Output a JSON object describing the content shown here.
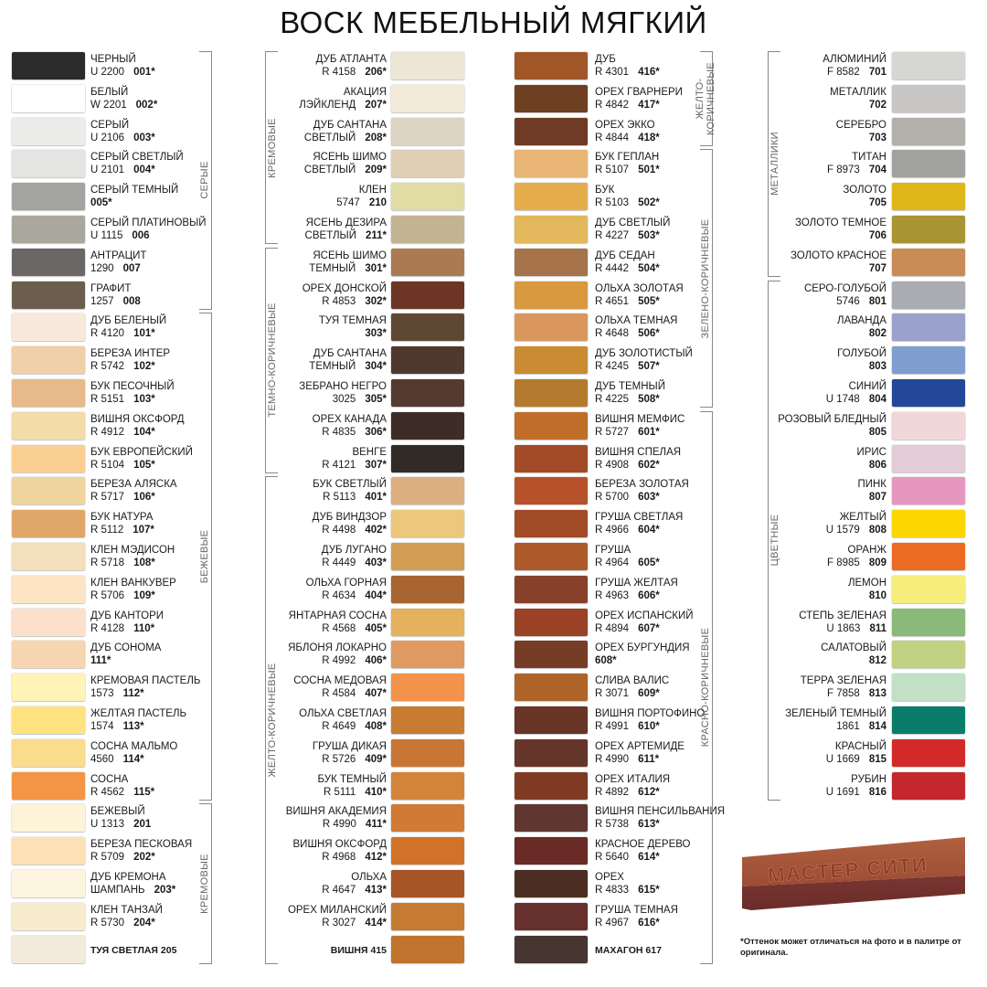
{
  "title": "ВОСК МЕБЕЛЬНЫЙ МЯГКИЙ",
  "columns": [
    {
      "align": "right-text",
      "groups": [
        {
          "label": "СЕРЫЕ",
          "from": 0,
          "to": 7
        },
        {
          "label": "БЕЖЕВЫЕ",
          "from": 8,
          "to": 22
        },
        {
          "label": "КРЕМОВЫЕ",
          "from": 23,
          "to": 27
        }
      ],
      "items": [
        {
          "l1": "ЧЕРНЫЙ",
          "l2": "U 2200",
          "code": "001*",
          "color": "#2b2b2b"
        },
        {
          "l1": "БЕЛЫЙ",
          "l2": "W 2201",
          "code": "002*",
          "color": "#ffffff"
        },
        {
          "l1": "СЕРЫЙ",
          "l2": "U 2106",
          "code": "003*",
          "color": "#ebebea"
        },
        {
          "l1": "СЕРЫЙ СВЕТЛЫЙ",
          "l2": "U 2101",
          "code": "004*",
          "color": "#e4e4e2"
        },
        {
          "l1": "СЕРЫЙ ТЕМНЫЙ",
          "l2": "",
          "code": "005*",
          "color": "#a3a4a0"
        },
        {
          "l1": "СЕРЫЙ ПЛАТИНОВЫЙ",
          "l2": "U 1115",
          "code": "006",
          "color": "#aaa89d"
        },
        {
          "l1": "АНТРАЦИТ",
          "l2": "1290",
          "code": "007",
          "color": "#6b6764"
        },
        {
          "l1": "ГРАФИТ",
          "l2": "1257",
          "code": "008",
          "color": "#6b5e4c"
        },
        {
          "l1": "ДУБ БЕЛЕНЫЙ",
          "l2": "R 4120",
          "code": "101*",
          "color": "#f8e9dc"
        },
        {
          "l1": "БЕРЕЗА ИНТЕР",
          "l2": "R 5742",
          "code": "102*",
          "color": "#f0d0a8"
        },
        {
          "l1": "БУК ПЕСОЧНЫЙ",
          "l2": "R 5151",
          "code": "103*",
          "color": "#e8b98a"
        },
        {
          "l1": "ВИШНЯ ОКСФОРД",
          "l2": "R 4912",
          "code": "104*",
          "color": "#f3dca8"
        },
        {
          "l1": "БУК ЕВРОПЕЙСКИЙ",
          "l2": "R 5104",
          "code": "105*",
          "color": "#fbcf92"
        },
        {
          "l1": "БЕРЕЗА АЛЯСКА",
          "l2": "R 5717",
          "code": "106*",
          "color": "#efd49e"
        },
        {
          "l1": "БУК НАТУРА",
          "l2": "R 5112",
          "code": "107*",
          "color": "#e0a66a"
        },
        {
          "l1": "КЛЕН МЭДИСОН",
          "l2": "R 5718",
          "code": "108*",
          "color": "#f4dfbd"
        },
        {
          "l1": "КЛЕН ВАНКУВЕР",
          "l2": "R 5706",
          "code": "109*",
          "color": "#fde4c4"
        },
        {
          "l1": "ДУБ КАНТОРИ",
          "l2": "R 4128",
          "code": "110*",
          "color": "#fde0cc"
        },
        {
          "l1": "ДУБ СОНОМА",
          "l2": "",
          "code": "111*",
          "color": "#f6d5b0"
        },
        {
          "l1": "КРЕМОВАЯ ПАСТЕЛЬ",
          "l2": "1573",
          "code": "112*",
          "color": "#fff3b8"
        },
        {
          "l1": "ЖЕЛТАЯ ПАСТЕЛЬ",
          "l2": "1574",
          "code": "113*",
          "color": "#fee380"
        },
        {
          "l1": "СОСНА МАЛЬМО",
          "l2": "4560",
          "code": "114*",
          "color": "#fbdc8c"
        },
        {
          "l1": "СОСНА",
          "l2": "R 4562",
          "code": "115*",
          "color": "#f39447"
        },
        {
          "l1": "БЕЖЕВЫЙ",
          "l2": "U 1313",
          "code": "201",
          "color": "#fdf3d8"
        },
        {
          "l1": "БЕРЕЗА ПЕСКОВАЯ",
          "l2": "R 5709",
          "code": "202*",
          "color": "#fde0b6"
        },
        {
          "l1": "ДУБ КРЕМОНА",
          "l2": "ШАМПАНЬ",
          "code": "203*",
          "color": "#fdf5e0"
        },
        {
          "l1": "КЛЕН ТАНЗАЙ",
          "l2": "R 5730",
          "code": "204*",
          "color": "#f8ecce"
        },
        {
          "single": "ТУЯ СВЕТЛАЯ 205",
          "color": "#f3eadb"
        }
      ]
    },
    {
      "align": "left-text",
      "groups": [
        {
          "label": "КРЕМОВЫЕ",
          "from": 0,
          "to": 5
        },
        {
          "label": "ТЕМНО-КОРИЧНЕВЫЕ",
          "from": 6,
          "to": 12
        },
        {
          "label": "ЖЕЛТО-КОРИЧНЕВЫЕ",
          "from": 13,
          "to": 27
        }
      ],
      "items": [
        {
          "l1": "ДУБ АТЛАНТА",
          "l2": "R 4158",
          "code": "206*",
          "color": "#ede5d5"
        },
        {
          "l1": "АКАЦИЯ",
          "l2": "ЛЭЙКЛЕНД",
          "code": "207*",
          "color": "#f4ead9"
        },
        {
          "l1": "ДУБ САНТАНА",
          "l2": "СВЕТЛЫЙ",
          "code": "208*",
          "color": "#ded4c4"
        },
        {
          "l1": "ЯСЕНЬ ШИМО",
          "l2": "СВЕТЛЫЙ",
          "code": "209*",
          "color": "#dfcfb5"
        },
        {
          "l1": "КЛЕН",
          "l2": "5747",
          "code": "210",
          "color": "#e1dca3"
        },
        {
          "l1": "ЯСЕНЬ ДЕЗИРА",
          "l2": "СВЕТЛЫЙ",
          "code": "211*",
          "color": "#c2b393"
        },
        {
          "l1": "ЯСЕНЬ ШИМО",
          "l2": "ТЕМНЫЙ",
          "code": "301*",
          "color": "#ac7a52"
        },
        {
          "l1": "ОРЕХ ДОНСКОЙ",
          "l2": "R 4853",
          "code": "302*",
          "color": "#6d3524"
        },
        {
          "l1": "ТУЯ ТЕМНАЯ",
          "l2": "",
          "code": "303*",
          "color": "#5f4833"
        },
        {
          "l1": "ДУБ САНТАНА",
          "l2": "ТЕМНЫЙ",
          "code": "304*",
          "color": "#50382e"
        },
        {
          "l1": "ЗЕБРАНО НЕГРО",
          "l2": "3025",
          "code": "305*",
          "color": "#553a30"
        },
        {
          "l1": "ОРЕХ КАНАДА",
          "l2": "R 4835",
          "code": "306*",
          "color": "#3e2d26"
        },
        {
          "l1": "ВЕНГЕ",
          "l2": "R 4121",
          "code": "307*",
          "color": "#322a26"
        },
        {
          "l1": "БУК СВЕТЛЫЙ",
          "l2": "R 5113",
          "code": "401*",
          "color": "#dcae80"
        },
        {
          "l1": "ДУБ ВИНДЗОР",
          "l2": "R 4498",
          "code": "402*",
          "color": "#ecc77c"
        },
        {
          "l1": "ДУБ ЛУГАНО",
          "l2": "R 4449",
          "code": "403*",
          "color": "#d49d54"
        },
        {
          "l1": "ОЛЬХА ГОРНАЯ",
          "l2": "R 4634",
          "code": "404*",
          "color": "#a8652f"
        },
        {
          "l1": "ЯНТАРНАЯ СОСНА",
          "l2": "R 4568",
          "code": "405*",
          "color": "#e5b15c"
        },
        {
          "l1": "ЯБЛОНЯ ЛОКАРНО",
          "l2": "R 4992",
          "code": "406*",
          "color": "#df9a62"
        },
        {
          "l1": "СОСНА МЕДОВАЯ",
          "l2": "R 4584",
          "code": "407*",
          "color": "#f3924a"
        },
        {
          "l1": "ОЛЬХА СВЕТЛАЯ",
          "l2": "R 4649",
          "code": "408*",
          "color": "#c87c32"
        },
        {
          "l1": "ГРУША ДИКАЯ",
          "l2": "R 5726",
          "code": "409*",
          "color": "#c97634"
        },
        {
          "l1": "БУК ТЕМНЫЙ",
          "l2": "R 5111",
          "code": "410*",
          "color": "#d3843a"
        },
        {
          "l1": "ВИШНЯ АКАДЕМИЯ",
          "l2": "R 4990",
          "code": "411*",
          "color": "#d07a35"
        },
        {
          "l1": "ВИШНЯ ОКСФОРД",
          "l2": "R 4968",
          "code": "412*",
          "color": "#d27228"
        },
        {
          "l1": "ОЛЬХА",
          "l2": "R 4647",
          "code": "413*",
          "color": "#a65526"
        },
        {
          "l1": "ОРЕХ МИЛАНСКИЙ",
          "l2": "R 3027",
          "code": "414*",
          "color": "#c57b32"
        },
        {
          "single": "ВИШНЯ 415",
          "color": "#c0742d"
        }
      ]
    },
    {
      "align": "right-text",
      "groups": [
        {
          "label": "ЖЕЛТО-\nКОРИЧНЕВЫЕ",
          "from": 0,
          "to": 2
        },
        {
          "label": "ЗЕЛЕНО-КОРИЧНЕВЫЕ",
          "from": 3,
          "to": 10
        },
        {
          "label": "КРАСНО-КОРИЧНЕВЫЕ",
          "from": 11,
          "to": 27
        }
      ],
      "items": [
        {
          "l1": "ДУБ",
          "l2": "R 4301",
          "code": "416*",
          "color": "#a15628"
        },
        {
          "l1": "ОРЕХ ГВАРНЕРИ",
          "l2": "R 4842",
          "code": "417*",
          "color": "#6f3f21"
        },
        {
          "l1": "ОРЕХ ЭККО",
          "l2": "R 4844",
          "code": "418*",
          "color": "#6f3b26"
        },
        {
          "l1": "БУК ГЕПЛАН",
          "l2": "R 5107",
          "code": "501*",
          "color": "#e8b574"
        },
        {
          "l1": "БУК",
          "l2": "R 5103",
          "code": "502*",
          "color": "#e5ad4c"
        },
        {
          "l1": "ДУБ СВЕТЛЫЙ",
          "l2": "R 4227",
          "code": "503*",
          "color": "#e3b75b"
        },
        {
          "l1": "ДУБ СЕДАН",
          "l2": "R 4442",
          "code": "504*",
          "color": "#a6734a"
        },
        {
          "l1": "ОЛЬХА ЗОЛОТАЯ",
          "l2": "R 4651",
          "code": "505*",
          "color": "#d9993e"
        },
        {
          "l1": "ОЛЬХА ТЕМНАЯ",
          "l2": "R 4648",
          "code": "506*",
          "color": "#d9975e"
        },
        {
          "l1": "ДУБ ЗОЛОТИСТЫЙ",
          "l2": "R 4245",
          "code": "507*",
          "color": "#c98c32"
        },
        {
          "l1": "ДУБ ТЕМНЫЙ",
          "l2": "R 4225",
          "code": "508*",
          "color": "#b47a2d"
        },
        {
          "l1": "ВИШНЯ МЕМФИС",
          "l2": "R 5727",
          "code": "601*",
          "color": "#c06e2a"
        },
        {
          "l1": "ВИШНЯ СПЕЛАЯ",
          "l2": "R 4908",
          "code": "602*",
          "color": "#a34b27"
        },
        {
          "l1": "БЕРЕЗА ЗОЛОТАЯ",
          "l2": "R 5700",
          "code": "603*",
          "color": "#b8512a"
        },
        {
          "l1": "ГРУША СВЕТЛАЯ",
          "l2": "R 4966",
          "code": "604*",
          "color": "#a24b27"
        },
        {
          "l1": "ГРУША",
          "l2": "R 4964",
          "code": "605*",
          "color": "#ad5a2b"
        },
        {
          "l1": "ГРУША ЖЕЛТАЯ",
          "l2": "R 4963",
          "code": "606*",
          "color": "#87412a"
        },
        {
          "l1": "ОРЕХ ИСПАНСКИЙ",
          "l2": "R 4894",
          "code": "607*",
          "color": "#9a4126"
        },
        {
          "l1": "ОРЕХ БУРГУНДИЯ",
          "l2": "",
          "code": "608*",
          "color": "#773c26"
        },
        {
          "l1": "СЛИВА ВАЛИС",
          "l2": "R 3071",
          "code": "609*",
          "color": "#ae6428"
        },
        {
          "l1": "ВИШНЯ ПОРТОФИНО",
          "l2": "R 4991",
          "code": "610*",
          "color": "#683526"
        },
        {
          "l1": "ОРЕХ АРТЕМИДЕ",
          "l2": "R 4990",
          "code": "611*",
          "color": "#66362b"
        },
        {
          "l1": "ОРЕХ ИТАЛИЯ",
          "l2": "R 4892",
          "code": "612*",
          "color": "#7f3a24"
        },
        {
          "l1": "ВИШНЯ ПЕНСИЛЬВАНИЯ",
          "l2": "R 5738",
          "code": "613*",
          "color": "#5f3630"
        },
        {
          "l1": "КРАСНОЕ ДЕРЕВО",
          "l2": "R 5640",
          "code": "614*",
          "color": "#6a2b26"
        },
        {
          "l1": "ОРЕХ",
          "l2": "R 4833",
          "code": "615*",
          "color": "#4c2e22"
        },
        {
          "l1": "ГРУША ТЕМНАЯ",
          "l2": "R 4967",
          "code": "616*",
          "color": "#66302c"
        },
        {
          "single": "МАХАГОН 617",
          "color": "#463530"
        }
      ]
    },
    {
      "align": "left-text",
      "groups": [
        {
          "label": "МЕТАЛЛИКИ",
          "from": 0,
          "to": 6
        },
        {
          "label": "ЦВЕТНЫЕ",
          "from": 7,
          "to": 22
        }
      ],
      "items": [
        {
          "l1": "АЛЮМИНИЙ",
          "l2": "F 8582",
          "code": "701",
          "color": "#d6d7d2"
        },
        {
          "l1": "МЕТАЛЛИК",
          "l2": "",
          "code": "702",
          "color": "#c7c6c4"
        },
        {
          "l1": "СЕРЕБРО",
          "l2": "",
          "code": "703",
          "color": "#b3afab"
        },
        {
          "l1": "ТИТАН",
          "l2": "F 8973",
          "code": "704",
          "color": "#a2a39e"
        },
        {
          "l1": "ЗОЛОТО",
          "l2": "",
          "code": "705",
          "color": "#dfb71b"
        },
        {
          "l1": "ЗОЛОТО ТЕМНОЕ",
          "l2": "",
          "code": "706",
          "color": "#a99433"
        },
        {
          "l1": "ЗОЛОТО КРАСНОЕ",
          "l2": "",
          "code": "707",
          "color": "#c98c57"
        },
        {
          "l1": "СЕРО-ГОЛУБОЙ",
          "l2": "5746",
          "code": "801",
          "color": "#a9acb0"
        },
        {
          "l1": "ЛАВАНДА",
          "l2": "",
          "code": "802",
          "color": "#9aa1ca"
        },
        {
          "l1": "ГОЛУБОЙ",
          "l2": "",
          "code": "803",
          "color": "#7f9ed0"
        },
        {
          "l1": "СИНИЙ",
          "l2": "U 1748",
          "code": "804",
          "color": "#23489a"
        },
        {
          "l1": "РОЗОВЫЙ БЛЕДНЫЙ",
          "l2": "",
          "code": "805",
          "color": "#f2d7da"
        },
        {
          "l1": "ИРИС",
          "l2": "",
          "code": "806",
          "color": "#e2cdd6"
        },
        {
          "l1": "ПИНК",
          "l2": "",
          "code": "807",
          "color": "#e796bf"
        },
        {
          "l1": "ЖЕЛТЫЙ",
          "l2": "U 1579",
          "code": "808",
          "color": "#fdd600"
        },
        {
          "l1": "ОРАНЖ",
          "l2": "F 8985",
          "code": "809",
          "color": "#ec6b22"
        },
        {
          "l1": "ЛЕМОН",
          "l2": "",
          "code": "810",
          "color": "#f5ee7a"
        },
        {
          "l1": "СТЕПЬ ЗЕЛЕНАЯ",
          "l2": "U 1863",
          "code": "811",
          "color": "#8aba7a"
        },
        {
          "l1": "САЛАТОВЫЙ",
          "l2": "",
          "code": "812",
          "color": "#c2d283"
        },
        {
          "l1": "ТЕРРА ЗЕЛЕНАЯ",
          "l2": "F 7858",
          "code": "813",
          "color": "#c2e0c6"
        },
        {
          "l1": "ЗЕЛЕНЫЙ ТЕМНЫЙ",
          "l2": "1861",
          "code": "814",
          "color": "#0a7d6a"
        },
        {
          "l1": "КРАСНЫЙ",
          "l2": "U 1669",
          "code": "815",
          "color": "#d22a2a"
        },
        {
          "l1": "РУБИН",
          "l2": "U 1691",
          "code": "816",
          "color": "#c4282e"
        }
      ]
    }
  ],
  "product": {
    "brand_text": "МАСТЕР СИТИ",
    "color": "#9a4a35"
  },
  "footnote": "*Оттенок может отличаться на фото и в палитре от оригинала."
}
